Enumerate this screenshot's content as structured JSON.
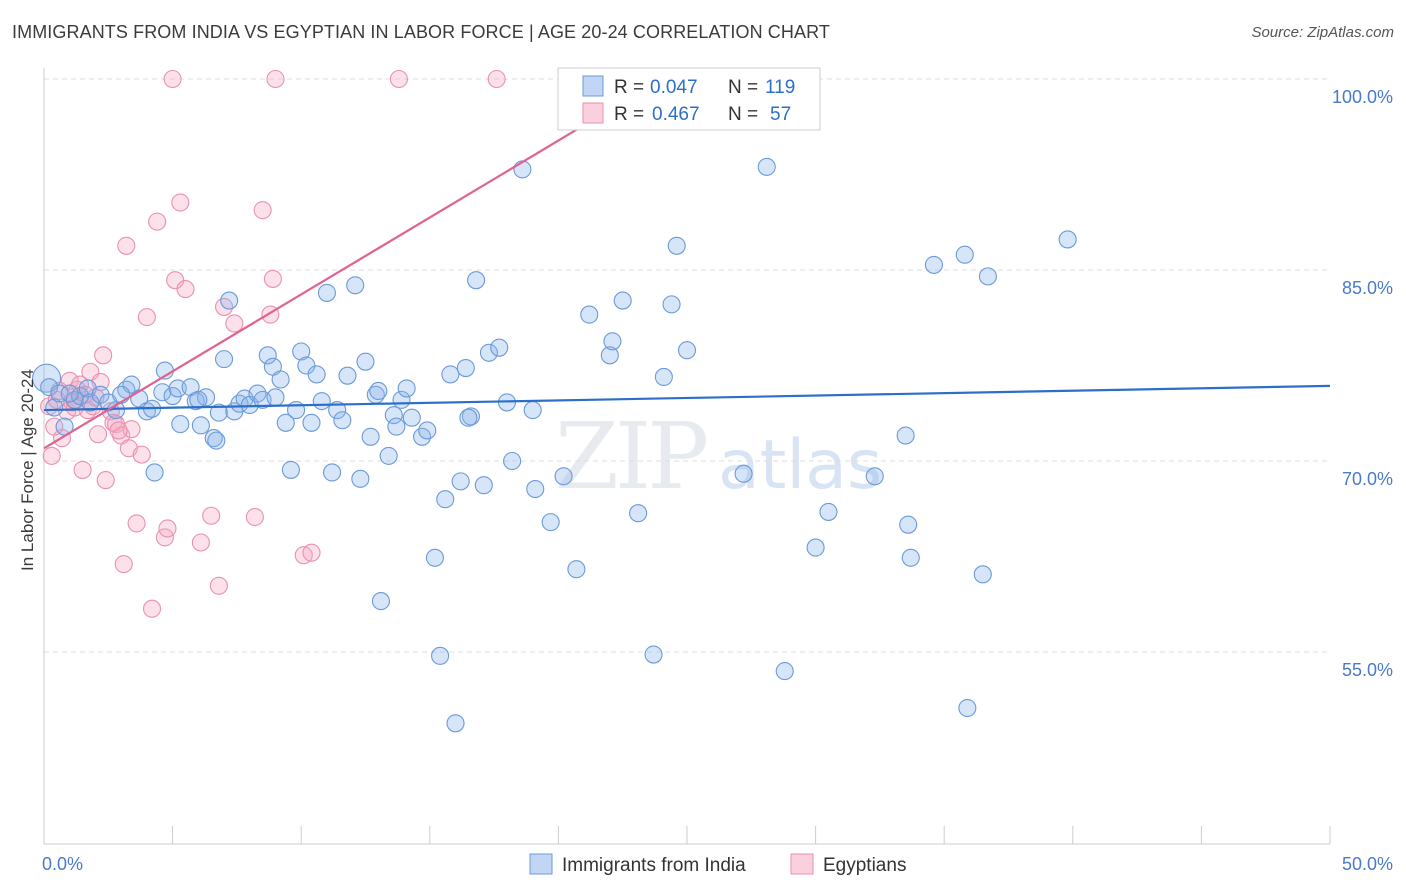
{
  "header": {
    "title": "IMMIGRANTS FROM INDIA VS EGYPTIAN IN LABOR FORCE | AGE 20-24 CORRELATION CHART",
    "source": "Source: ZipAtlas.com"
  },
  "watermark": {
    "zip": "ZIP",
    "atlas": "atlas"
  },
  "colors": {
    "india_fill": "rgba(140,180,235,0.35)",
    "india_stroke": "#6b9ad8",
    "india_line": "#2c6fca",
    "egypt_fill": "rgba(245,170,195,0.35)",
    "egypt_stroke": "#e991ae",
    "egypt_line": "#e0628d",
    "axis_text": "#4a7ac8",
    "grid": "#dddddd"
  },
  "stats": {
    "india": {
      "r_label": "R =",
      "r_value": "0.047",
      "n_label": "N =",
      "n_value": "119"
    },
    "egypt": {
      "r_label": "R =",
      "r_value": "0.467",
      "n_label": "N =",
      "n_value": "57"
    }
  },
  "chart_data": {
    "type": "scatter",
    "title": "IMMIGRANTS FROM INDIA VS EGYPTIAN IN LABOR FORCE | AGE 20-24 CORRELATION CHART",
    "xlabel": "",
    "ylabel": "In Labor Force | Age 20-24",
    "xlim": [
      0,
      50
    ],
    "ylim": [
      40,
      102
    ],
    "x_tick_labels": [
      {
        "value": 0,
        "label": "0.0%"
      },
      {
        "value": 50,
        "label": "50.0%"
      }
    ],
    "x_minor_ticks": [
      5,
      10,
      15,
      20,
      25,
      30,
      35,
      40,
      45,
      50
    ],
    "y_ticks": [
      {
        "value": 100,
        "label": "100.0%"
      },
      {
        "value": 85,
        "label": "85.0%"
      },
      {
        "value": 70,
        "label": "70.0%"
      },
      {
        "value": 55,
        "label": "55.0%"
      }
    ],
    "legend": {
      "position": "bottom-center",
      "entries": [
        "Immigrants from India",
        "Egyptians"
      ]
    },
    "series": [
      {
        "name": "Immigrants from India",
        "trend": {
          "x0": 0,
          "y0": 74.0,
          "x1": 50,
          "y1": 75.9
        },
        "points": [
          [
            0.1,
            76.5
          ],
          [
            0.2,
            75.8
          ],
          [
            0.4,
            74.2
          ],
          [
            0.6,
            75.3
          ],
          [
            0.8,
            72.7
          ],
          [
            1.2,
            74.8
          ],
          [
            1.4,
            75.1
          ],
          [
            1.7,
            75.7
          ],
          [
            1.8,
            74.6
          ],
          [
            2.2,
            75.2
          ],
          [
            2.8,
            74.0
          ],
          [
            3.2,
            75.6
          ],
          [
            3.4,
            76.0
          ],
          [
            3.7,
            74.9
          ],
          [
            4.0,
            73.9
          ],
          [
            4.2,
            74.1
          ],
          [
            4.3,
            69.1
          ],
          [
            4.6,
            75.4
          ],
          [
            4.7,
            77.1
          ],
          [
            5.0,
            75.1
          ],
          [
            5.2,
            75.7
          ],
          [
            5.3,
            72.9
          ],
          [
            5.7,
            75.8
          ],
          [
            5.9,
            74.7
          ],
          [
            6.1,
            72.8
          ],
          [
            6.3,
            75.0
          ],
          [
            6.6,
            71.8
          ],
          [
            6.7,
            71.6
          ],
          [
            6.8,
            73.8
          ],
          [
            7.0,
            78.0
          ],
          [
            7.2,
            82.6
          ],
          [
            7.4,
            73.9
          ],
          [
            7.6,
            74.5
          ],
          [
            7.8,
            74.9
          ],
          [
            8.0,
            74.4
          ],
          [
            8.3,
            75.3
          ],
          [
            8.5,
            74.8
          ],
          [
            8.7,
            78.3
          ],
          [
            8.9,
            77.4
          ],
          [
            9.2,
            76.4
          ],
          [
            9.4,
            73.0
          ],
          [
            9.6,
            69.3
          ],
          [
            9.8,
            74.0
          ],
          [
            10.0,
            78.6
          ],
          [
            10.2,
            77.5
          ],
          [
            10.4,
            73.0
          ],
          [
            10.6,
            76.8
          ],
          [
            10.8,
            74.7
          ],
          [
            11.0,
            83.2
          ],
          [
            11.2,
            69.1
          ],
          [
            11.4,
            74.0
          ],
          [
            11.6,
            73.2
          ],
          [
            11.8,
            76.7
          ],
          [
            12.1,
            83.8
          ],
          [
            12.3,
            68.6
          ],
          [
            12.5,
            77.8
          ],
          [
            12.7,
            71.9
          ],
          [
            12.9,
            75.2
          ],
          [
            13.1,
            59.0
          ],
          [
            13.4,
            70.4
          ],
          [
            13.6,
            73.6
          ],
          [
            13.7,
            72.7
          ],
          [
            13.9,
            74.8
          ],
          [
            14.1,
            75.7
          ],
          [
            14.3,
            73.4
          ],
          [
            14.7,
            71.9
          ],
          [
            14.9,
            72.4
          ],
          [
            15.2,
            62.4
          ],
          [
            15.4,
            54.7
          ],
          [
            15.6,
            67.0
          ],
          [
            15.8,
            76.8
          ],
          [
            16.0,
            49.4
          ],
          [
            16.2,
            68.4
          ],
          [
            16.4,
            77.3
          ],
          [
            16.6,
            73.5
          ],
          [
            16.8,
            84.2
          ],
          [
            17.1,
            68.1
          ],
          [
            17.3,
            78.5
          ],
          [
            17.7,
            78.9
          ],
          [
            18.0,
            74.6
          ],
          [
            18.2,
            70.0
          ],
          [
            18.6,
            92.9
          ],
          [
            19.1,
            67.8
          ],
          [
            19.7,
            65.2
          ],
          [
            20.2,
            68.8
          ],
          [
            20.7,
            61.5
          ],
          [
            21.2,
            81.5
          ],
          [
            22.0,
            78.3
          ],
          [
            22.1,
            79.4
          ],
          [
            22.5,
            82.6
          ],
          [
            23.1,
            65.9
          ],
          [
            23.7,
            54.8
          ],
          [
            24.1,
            76.6
          ],
          [
            24.4,
            82.3
          ],
          [
            24.6,
            86.9
          ],
          [
            25.0,
            78.7
          ],
          [
            27.2,
            69.0
          ],
          [
            28.1,
            93.1
          ],
          [
            28.8,
            53.5
          ],
          [
            30.0,
            63.2
          ],
          [
            30.5,
            66.0
          ],
          [
            32.3,
            68.8
          ],
          [
            33.5,
            72.0
          ],
          [
            33.6,
            65.0
          ],
          [
            33.7,
            62.4
          ],
          [
            34.6,
            85.4
          ],
          [
            35.8,
            86.2
          ],
          [
            35.9,
            50.6
          ],
          [
            36.5,
            61.1
          ],
          [
            36.7,
            84.5
          ],
          [
            39.8,
            87.4
          ],
          [
            1.0,
            75.3
          ],
          [
            2.5,
            74.6
          ],
          [
            3.0,
            75.2
          ],
          [
            6.0,
            74.8
          ],
          [
            9.0,
            75.0
          ],
          [
            13.0,
            75.5
          ],
          [
            16.5,
            73.4
          ],
          [
            19.0,
            74.0
          ]
        ]
      },
      {
        "name": "Egyptians",
        "trend": {
          "x0": 0,
          "y0": 71.0,
          "x1": 24,
          "y1": 100.0
        },
        "points": [
          [
            0.2,
            74.3
          ],
          [
            0.3,
            70.4
          ],
          [
            0.5,
            74.8
          ],
          [
            0.7,
            71.8
          ],
          [
            0.9,
            73.9
          ],
          [
            1.0,
            76.3
          ],
          [
            1.2,
            74.7
          ],
          [
            1.3,
            75.6
          ],
          [
            1.4,
            76.0
          ],
          [
            1.5,
            69.3
          ],
          [
            1.7,
            74.0
          ],
          [
            1.8,
            77.0
          ],
          [
            1.9,
            74.3
          ],
          [
            2.0,
            75.0
          ],
          [
            2.1,
            72.1
          ],
          [
            2.3,
            78.3
          ],
          [
            2.4,
            68.5
          ],
          [
            2.6,
            73.9
          ],
          [
            2.8,
            72.9
          ],
          [
            3.0,
            72.0
          ],
          [
            3.1,
            61.9
          ],
          [
            3.2,
            86.9
          ],
          [
            3.3,
            71.0
          ],
          [
            3.6,
            65.1
          ],
          [
            3.8,
            70.5
          ],
          [
            4.0,
            81.3
          ],
          [
            4.2,
            58.4
          ],
          [
            4.4,
            88.8
          ],
          [
            4.7,
            64.0
          ],
          [
            4.8,
            64.7
          ],
          [
            5.0,
            100.0
          ],
          [
            5.1,
            84.2
          ],
          [
            5.3,
            90.3
          ],
          [
            5.5,
            83.5
          ],
          [
            6.1,
            63.6
          ],
          [
            6.5,
            65.7
          ],
          [
            6.8,
            60.2
          ],
          [
            7.0,
            82.1
          ],
          [
            7.4,
            80.8
          ],
          [
            8.2,
            65.6
          ],
          [
            8.5,
            89.7
          ],
          [
            8.8,
            81.5
          ],
          [
            8.9,
            84.3
          ],
          [
            9.0,
            100.0
          ],
          [
            10.1,
            62.6
          ],
          [
            10.4,
            62.8
          ],
          [
            13.8,
            100.0
          ],
          [
            17.6,
            100.0
          ],
          [
            0.6,
            75.5
          ],
          [
            1.1,
            74.6
          ],
          [
            1.6,
            75.2
          ],
          [
            2.2,
            76.2
          ],
          [
            2.7,
            73.0
          ],
          [
            3.4,
            72.5
          ],
          [
            0.4,
            72.7
          ],
          [
            1.2,
            74.2
          ],
          [
            2.9,
            72.4
          ]
        ]
      }
    ]
  }
}
